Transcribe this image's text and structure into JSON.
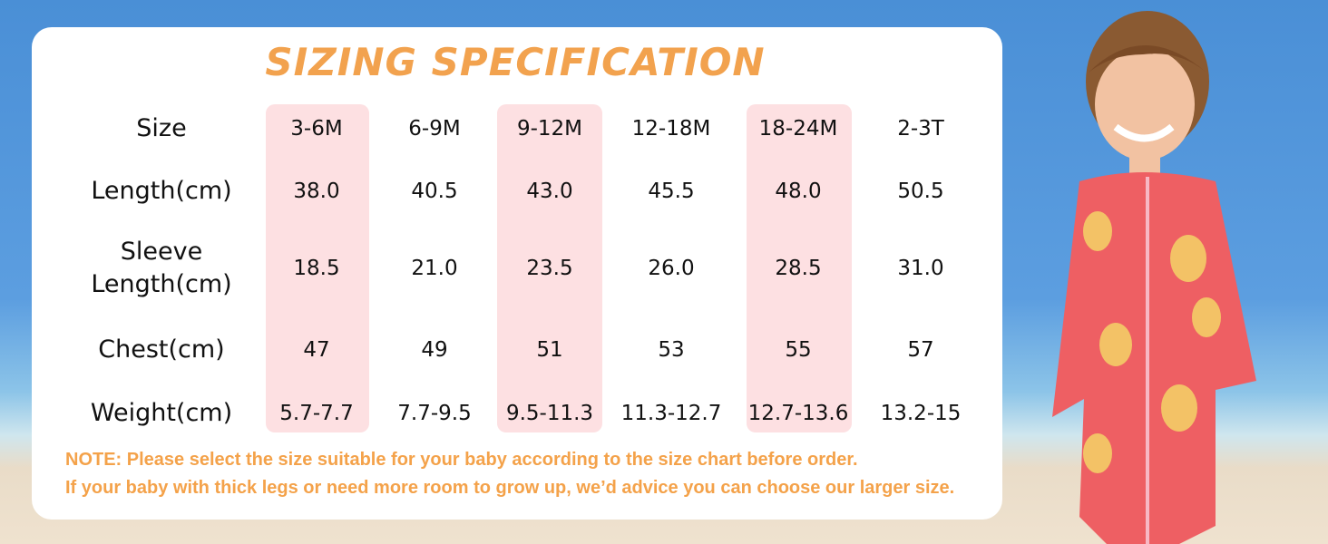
{
  "header": {
    "title": "SIZING SPECIFICATION"
  },
  "table": {
    "rows": [
      {
        "label": "Size",
        "cells": [
          "3-6M",
          "6-9M",
          "9-12M",
          "12-18M",
          "18-24M",
          "2-3T"
        ]
      },
      {
        "label": "Length(cm)",
        "cells": [
          "38.0",
          "40.5",
          "43.0",
          "45.5",
          "48.0",
          "50.5"
        ]
      },
      {
        "label": "Sleeve Length(cm)",
        "cells": [
          "18.5",
          "21.0",
          "23.5",
          "26.0",
          "28.5",
          "31.0"
        ]
      },
      {
        "label": "Chest(cm)",
        "cells": [
          "47",
          "49",
          "51",
          "53",
          "55",
          "57"
        ]
      },
      {
        "label": "Weight(cm)",
        "cells": [
          "5.7-7.7",
          "7.7-9.5",
          "9.5-11.3",
          "11.3-12.7",
          "12.7-13.6",
          "13.2-15"
        ]
      }
    ]
  },
  "notes": [
    "NOTE: Please select the size suitable for your baby according to the size chart before order.",
    "If your baby with thick legs or need more room to grow up, we’d advice you can choose our larger size."
  ]
}
